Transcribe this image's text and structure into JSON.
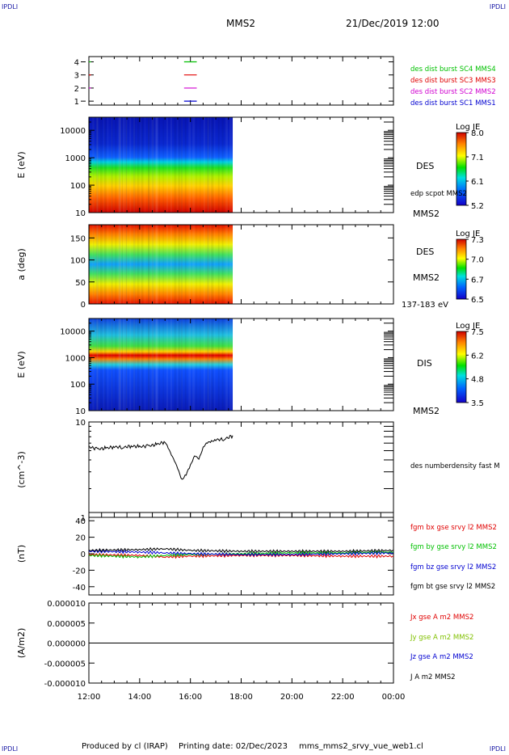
{
  "corners": {
    "tl": "IPDLI",
    "tr": "IPDLI",
    "bl": "IPDLI",
    "br": "IPDLI"
  },
  "header": {
    "title": "MMS2",
    "datetime": "21/Dec/2019 12:00"
  },
  "footer": {
    "produced": "Produced by cl (IRAP)",
    "printing": "Printing date: 02/Dec/2023",
    "script": "mms_mms2_srvy_vue_web1.cl"
  },
  "time_axis": {
    "ticks": [
      "12:00",
      "14:00",
      "16:00",
      "18:00",
      "20:00",
      "22:00",
      "00:00"
    ]
  },
  "chart_data": [
    {
      "type": "scatter",
      "panel": "sc-availability",
      "yticks": [
        "1",
        "2",
        "3",
        "4"
      ],
      "ylim": [
        0.7,
        4.4
      ],
      "series": [
        {
          "name": "des dist burst SC1 MMS1",
          "color": "#0000d0",
          "y": 1,
          "segments": [
            [
              "15:45",
              "16:15"
            ]
          ]
        },
        {
          "name": "des dist burst SC2 MMS2",
          "color": "#d000d0",
          "y": 2,
          "segments": [
            [
              "12:00",
              "12:05"
            ],
            [
              "15:45",
              "16:15"
            ]
          ]
        },
        {
          "name": "des dist burst SC3 MMS3",
          "color": "#e00000",
          "y": 3,
          "segments": [
            [
              "12:00",
              "12:05"
            ],
            [
              "15:45",
              "16:15"
            ]
          ]
        },
        {
          "name": "des dist burst SC4 MMS4",
          "color": "#00c000",
          "y": 4,
          "segments": [
            [
              "12:00",
              "12:05"
            ],
            [
              "15:45",
              "16:15"
            ]
          ]
        }
      ]
    },
    {
      "type": "heatmap",
      "panel": "des-energy",
      "ylabel": "E (eV)",
      "yscale": "log",
      "ylim": [
        10,
        30000
      ],
      "yticks": [
        "10",
        "100",
        "1000",
        "10000"
      ],
      "data_end": "17:40",
      "labels": [
        "DES",
        "edp scpot MMS2",
        "MMS2"
      ],
      "colorbar": {
        "title": "Log JE",
        "ticks": [
          "8.0",
          "7.1",
          "6.1",
          "5.2"
        ],
        "range": [
          5.2,
          8.0
        ]
      }
    },
    {
      "type": "heatmap",
      "panel": "des-pitch",
      "ylabel": "a (deg)",
      "ylim": [
        0,
        180
      ],
      "yticks": [
        "0",
        "50",
        "100",
        "150"
      ],
      "data_end": "17:40",
      "labels": [
        "DES",
        "MMS2",
        "137-183 eV"
      ],
      "colorbar": {
        "title": "Log JE",
        "ticks": [
          "7.3",
          "7.0",
          "6.7",
          "6.5"
        ],
        "range": [
          6.5,
          7.3
        ]
      }
    },
    {
      "type": "heatmap",
      "panel": "dis-energy",
      "ylabel": "E (eV)",
      "yscale": "log",
      "ylim": [
        10,
        30000
      ],
      "yticks": [
        "10",
        "100",
        "1000",
        "10000"
      ],
      "data_end": "17:40",
      "labels": [
        "DIS",
        "MMS2"
      ],
      "colorbar": {
        "title": "Log JE",
        "ticks": [
          "7.5",
          "6.2",
          "4.8",
          "3.5"
        ],
        "range": [
          3.5,
          7.5
        ]
      }
    },
    {
      "type": "line",
      "panel": "density",
      "ylabel": "(cm^-3)",
      "yscale": "log",
      "ylim": [
        1,
        10
      ],
      "yticks": [
        "1",
        "10"
      ],
      "series": [
        {
          "name": "des numberdensity fast M",
          "color": "#000000",
          "x": [
            "12:00",
            "12:20",
            "12:40",
            "13:00",
            "13:20",
            "13:40",
            "14:00",
            "14:20",
            "14:40",
            "15:00",
            "15:10",
            "15:20",
            "15:30",
            "15:40",
            "15:50",
            "16:00",
            "16:10",
            "16:20",
            "16:30",
            "16:40",
            "16:50",
            "17:00",
            "17:20",
            "17:40"
          ],
          "y": [
            5.5,
            5.2,
            5.3,
            5.5,
            5.4,
            5.6,
            5.5,
            5.6,
            5.8,
            6.2,
            5.0,
            4.2,
            3.2,
            2.5,
            2.8,
            3.5,
            4.5,
            4.0,
            5.5,
            6.0,
            6.3,
            6.5,
            6.6,
            7.2
          ]
        }
      ]
    },
    {
      "type": "line",
      "panel": "magnetic-field",
      "ylabel": "(nT)",
      "ylim": [
        -50,
        50
      ],
      "yticks": [
        "40",
        "20",
        "0",
        "-20",
        "-40"
      ],
      "series": [
        {
          "name": "fgm bx gse srvy l2 MMS2",
          "color": "#e00000",
          "x": [
            "12:00",
            "14:00",
            "15:00",
            "16:00",
            "18:00",
            "20:00",
            "22:00",
            "00:00"
          ],
          "y": [
            -1,
            -2,
            -4,
            -3,
            -2,
            -2,
            -3,
            -3
          ]
        },
        {
          "name": "fgm by gse srvy l2 MMS2",
          "color": "#00c000",
          "x": [
            "12:00",
            "14:00",
            "15:00",
            "16:00",
            "18:00",
            "20:00",
            "22:00",
            "00:00"
          ],
          "y": [
            -2,
            -4,
            -2,
            -1,
            0,
            1,
            1,
            2
          ]
        },
        {
          "name": "fgm bz gse srvy l2 MMS2",
          "color": "#0000d0",
          "x": [
            "12:00",
            "14:00",
            "15:00",
            "16:00",
            "18:00",
            "20:00",
            "22:00",
            "00:00"
          ],
          "y": [
            3,
            2,
            1,
            0,
            -1,
            -1,
            0,
            1
          ]
        },
        {
          "name": "fgm bt gse srvy l2 MMS2",
          "color": "#000000",
          "x": [
            "12:00",
            "14:00",
            "15:00",
            "16:00",
            "18:00",
            "20:00",
            "22:00",
            "00:00"
          ],
          "y": [
            4,
            5,
            6,
            4,
            3,
            3,
            3,
            4
          ]
        }
      ]
    },
    {
      "type": "line",
      "panel": "current-density",
      "ylabel": "(A/m2)",
      "ylim": [
        -1e-05,
        1e-05
      ],
      "yticks": [
        "0.000010",
        "0.000005",
        "0.000000",
        "-0.000005",
        "-0.000010"
      ],
      "series": [
        {
          "name": "Jx gse A m2 MMS2",
          "color": "#e00000",
          "x": [
            "12:00",
            "00:00"
          ],
          "y": [
            0,
            0
          ]
        },
        {
          "name": "Jy gse A m2 MMS2",
          "color": "#80c000",
          "x": [
            "12:00",
            "00:00"
          ],
          "y": [
            0,
            0
          ]
        },
        {
          "name": "Jz gse A m2 MMS2",
          "color": "#0000d0",
          "x": [
            "12:00",
            "00:00"
          ],
          "y": [
            0,
            0
          ]
        },
        {
          "name": "J A m2 MMS2",
          "color": "#000000",
          "x": [
            "12:00",
            "00:00"
          ],
          "y": [
            0,
            0
          ]
        }
      ]
    }
  ]
}
